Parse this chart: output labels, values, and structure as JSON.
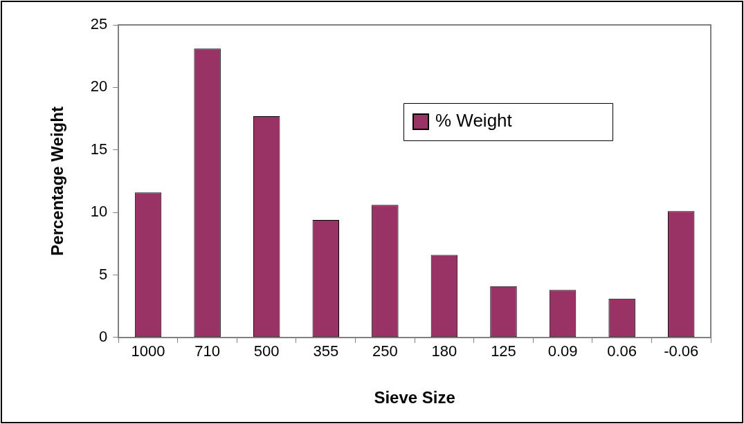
{
  "chart_data": {
    "type": "bar",
    "xlabel": "Sieve Size",
    "ylabel": "Percentage Weight",
    "categories": [
      "1000",
      "710",
      "500",
      "355",
      "250",
      "180",
      "125",
      "0.09",
      "0.06",
      "-0.06"
    ],
    "series": [
      {
        "name": "% Weight",
        "color": "#993366",
        "values": [
          11.6,
          23.1,
          17.7,
          9.4,
          10.6,
          6.6,
          4.1,
          3.8,
          3.1,
          10.1
        ]
      }
    ],
    "ylim": [
      0,
      25
    ],
    "yticks": [
      0,
      5,
      10,
      15,
      20,
      25
    ],
    "legend": "top right"
  }
}
